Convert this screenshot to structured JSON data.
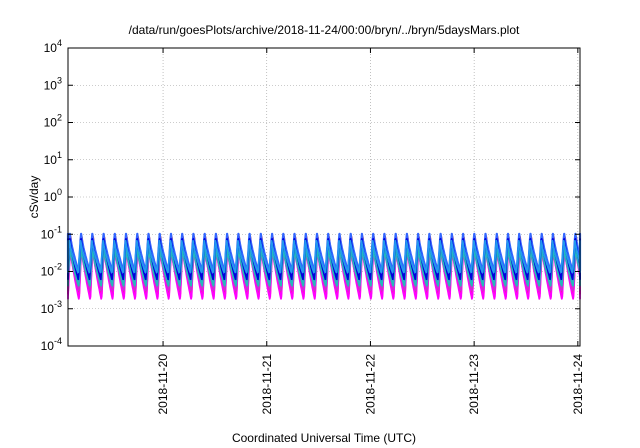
{
  "chart_data": {
    "type": "line",
    "title": "/data/run/goesPlots/archive/2018-11-24/00:00/bryn/../bryn/5daysMars.plot",
    "xlabel": "Coordinated Universal Time (UTC)",
    "ylabel": "cSv/day",
    "y_scale": "log",
    "ylim": [
      0.0001,
      10000
    ],
    "y_ticks": [
      {
        "value": 0.0001,
        "base": "10",
        "exp": "-4"
      },
      {
        "value": 0.001,
        "base": "10",
        "exp": "-3"
      },
      {
        "value": 0.01,
        "base": "10",
        "exp": "-2"
      },
      {
        "value": 0.1,
        "base": "10",
        "exp": "-1"
      },
      {
        "value": 1,
        "base": "10",
        "exp": "0"
      },
      {
        "value": 10,
        "base": "10",
        "exp": "1"
      },
      {
        "value": 100,
        "base": "10",
        "exp": "2"
      },
      {
        "value": 1000,
        "base": "10",
        "exp": "3"
      },
      {
        "value": 10000,
        "base": "10",
        "exp": "4"
      }
    ],
    "xlim": [
      "2018-11-19T02:00",
      "2018-11-24T00:30"
    ],
    "x_ticks": [
      "2018-11-20",
      "2018-11-21",
      "2018-11-22",
      "2018-11-23",
      "2018-11-24"
    ],
    "grid": true,
    "legend": "none",
    "period_hours": 2.6,
    "series": [
      {
        "color": "#ff2222",
        "peak": 0.11,
        "trough": 0.0025
      },
      {
        "color": "#ff00ff",
        "peak": 0.05,
        "trough": 0.0017
      },
      {
        "color": "#cc33cc",
        "peak": 0.04,
        "trough": 0.003
      },
      {
        "color": "#22bbbb",
        "peak": 0.045,
        "trough": 0.004
      },
      {
        "color": "#3366ff",
        "peak": 0.11,
        "trough": 0.01
      },
      {
        "color": "#0000dd",
        "peak": 0.09,
        "trough": 0.006
      },
      {
        "color": "#2299ee",
        "peak": 0.07,
        "trough": 0.009
      }
    ]
  }
}
